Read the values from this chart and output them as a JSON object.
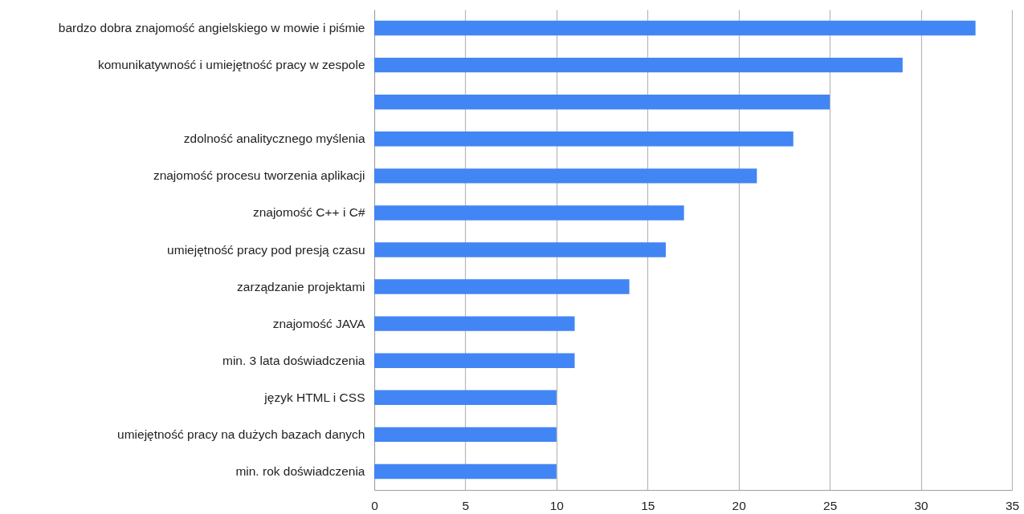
{
  "chart_data": {
    "type": "bar",
    "orientation": "horizontal",
    "categories": [
      "bardzo dobra znajomość angielskiego w mowie i piśmie",
      "komunikatywność i umiejętność pracy w zespole",
      null,
      "zdolność analitycznego myślenia",
      "znajomość procesu tworzenia aplikacji",
      "znajomość C++ i C#",
      "umiejętność pracy pod presją czasu",
      "zarządzanie projektami",
      "znajomość JAVA",
      "min. 3 lata doświadczenia",
      "język HTML i CSS",
      "umiejętność pracy na dużych bazach danych",
      "min. rok doświadczenia"
    ],
    "values": [
      33,
      29,
      25,
      23,
      21,
      17,
      16,
      14,
      11,
      11,
      10,
      10,
      10
    ],
    "color": "#4285f4",
    "xlim": [
      0,
      35
    ],
    "xticks": [
      0,
      5,
      10,
      15,
      20,
      25,
      30,
      35
    ],
    "grid": "x"
  }
}
